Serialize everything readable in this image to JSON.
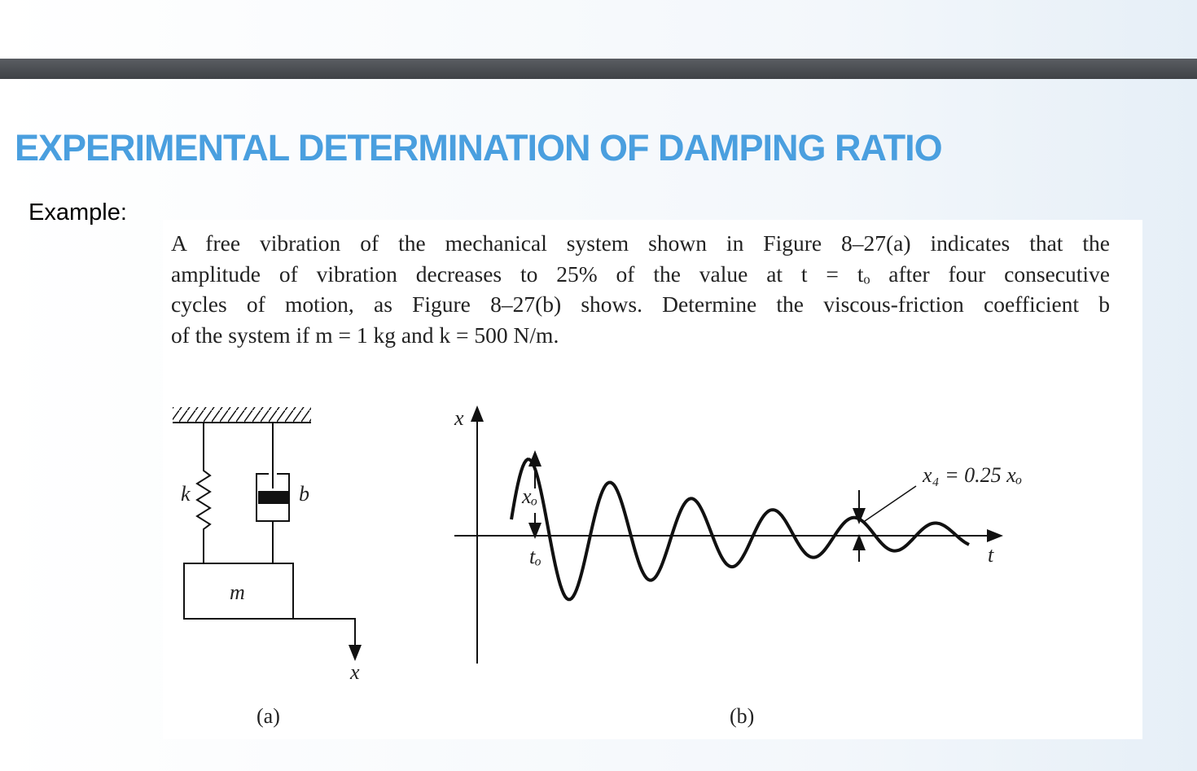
{
  "title": "EXPERIMENTAL DETERMINATION OF DAMPING RATIO",
  "example_label": "Example:",
  "problem": {
    "lines": [
      "A free vibration of the mechanical system shown in Figure 8–27(a) indicates that the",
      "amplitude of vibration decreases to 25% of the value at t = tₒ after four consecutive",
      "cycles of motion, as Figure 8–27(b) shows. Determine the viscous-friction coefficient b",
      "of the system if m = 1 kg and k = 500 N/m."
    ]
  },
  "figure_a": {
    "spring_label": "k",
    "damper_label": "b",
    "mass_label": "m",
    "displacement_label": "x",
    "caption": "(a)"
  },
  "figure_b": {
    "y_axis_label": "x",
    "x_axis_label": "t",
    "amplitude_label": "xₒ",
    "time_label": "tₒ",
    "annotation": "x₄ = 0.25 xₒ",
    "caption": "(b)"
  }
}
